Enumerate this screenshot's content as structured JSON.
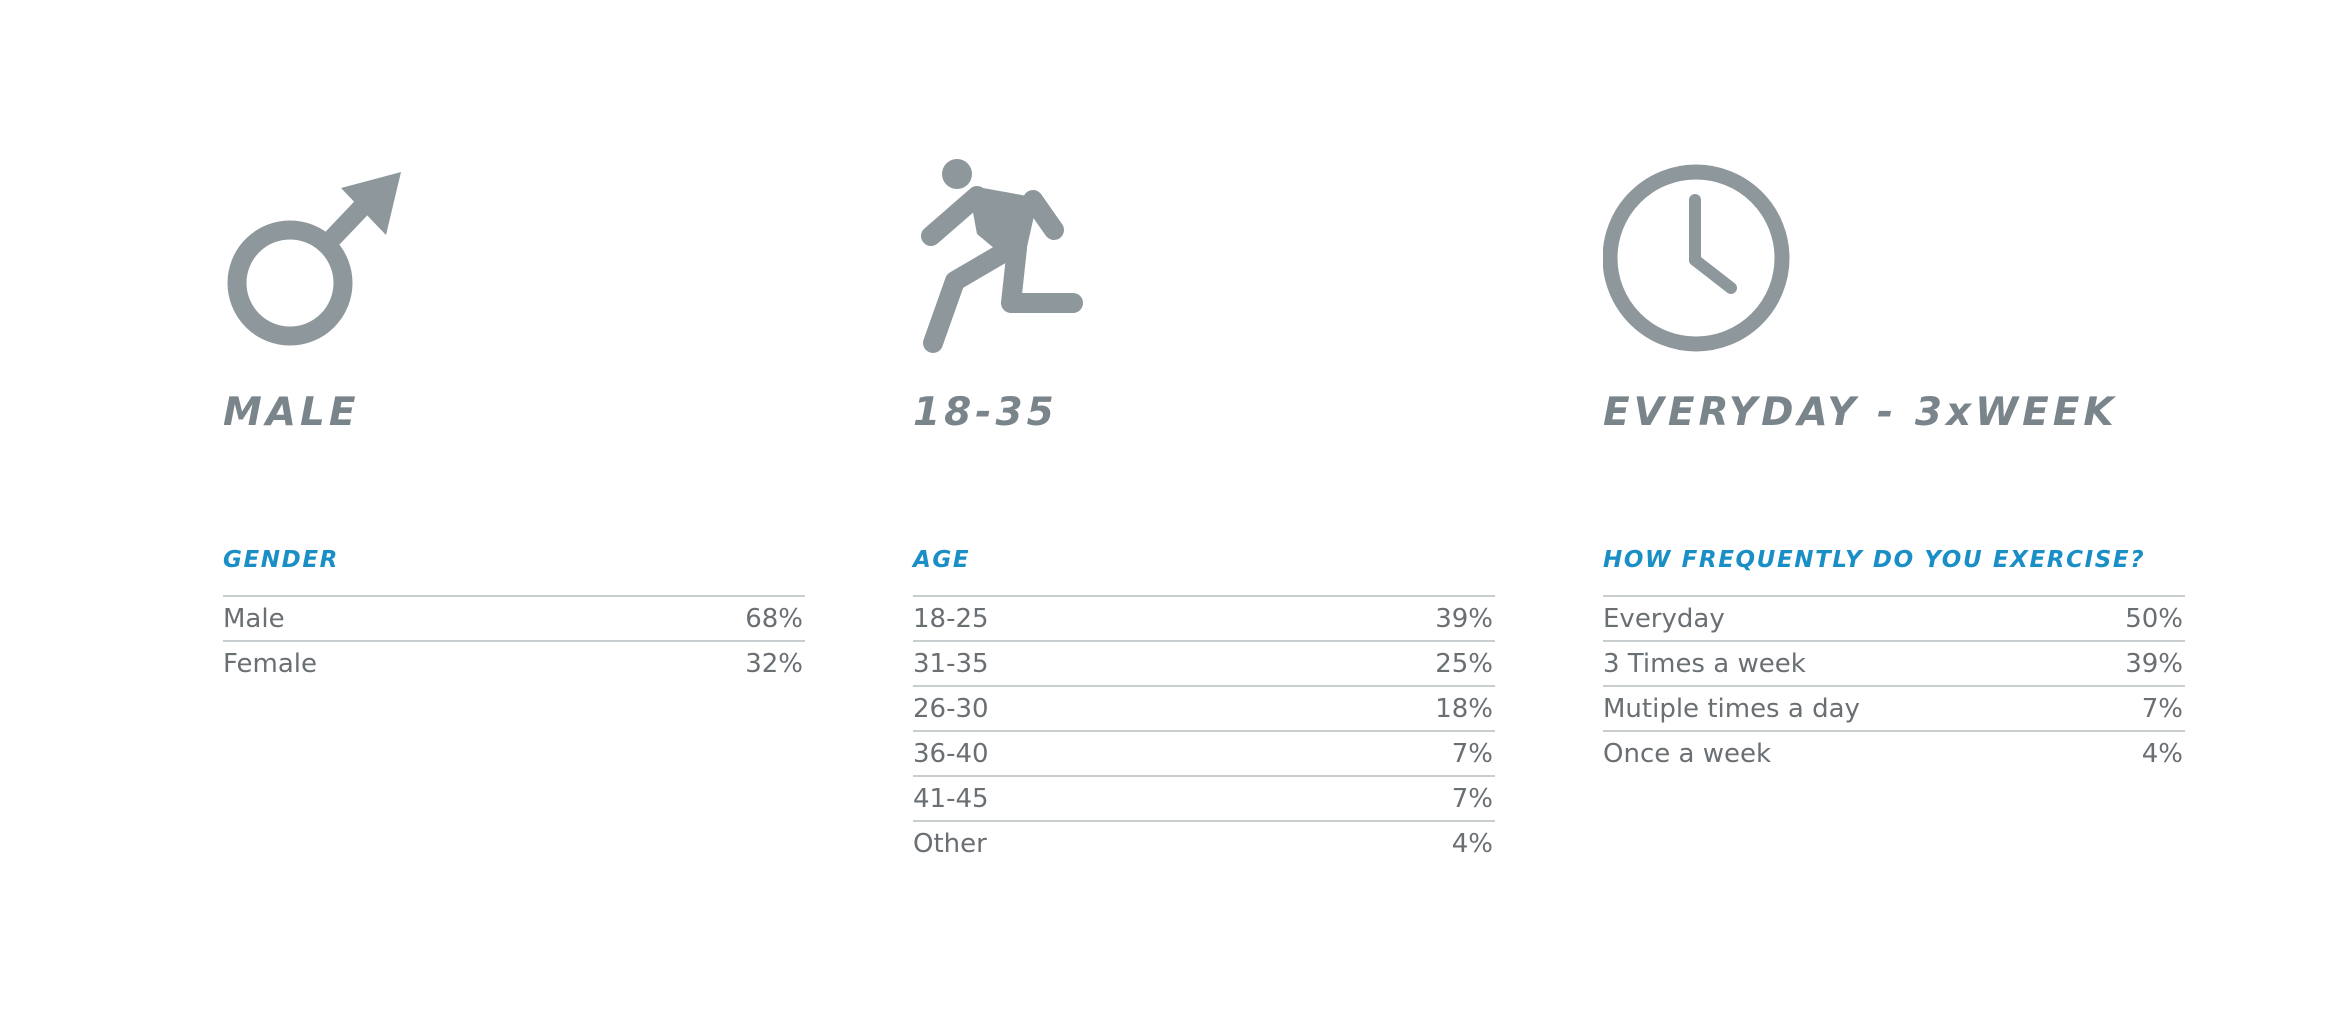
{
  "columns": [
    {
      "id": "gender",
      "icon": "male-symbol-icon",
      "headline": "MALE",
      "label": "GENDER",
      "rows": [
        {
          "label": "Male",
          "value": "68%"
        },
        {
          "label": "Female",
          "value": "32%"
        }
      ]
    },
    {
      "id": "age",
      "icon": "running-person-icon",
      "headline": "18-35",
      "label": "AGE",
      "rows": [
        {
          "label": "18-25",
          "value": "39%"
        },
        {
          "label": "31-35",
          "value": "25%"
        },
        {
          "label": "26-30",
          "value": "18%"
        },
        {
          "label": "36-40",
          "value": "7%"
        },
        {
          "label": "41-45",
          "value": "7%"
        },
        {
          "label": "Other",
          "value": "4%"
        }
      ]
    },
    {
      "id": "frequency",
      "icon": "clock-icon",
      "headline": "EVERYDAY - 3xWEEK",
      "label": "HOW FREQUENTLY DO YOU EXERCISE?",
      "rows": [
        {
          "label": "Everyday",
          "value": "50%"
        },
        {
          "label": "3 Times a week",
          "value": "39%"
        },
        {
          "label": "Mutiple times a day",
          "value": "7%"
        },
        {
          "label": "Once a week",
          "value": "4%"
        }
      ]
    }
  ],
  "colors": {
    "icon": "#8e979c",
    "headline": "#7a858b",
    "accent": "#1a8fc6",
    "text": "#6a6f73",
    "rule": "#c8cdd0"
  }
}
